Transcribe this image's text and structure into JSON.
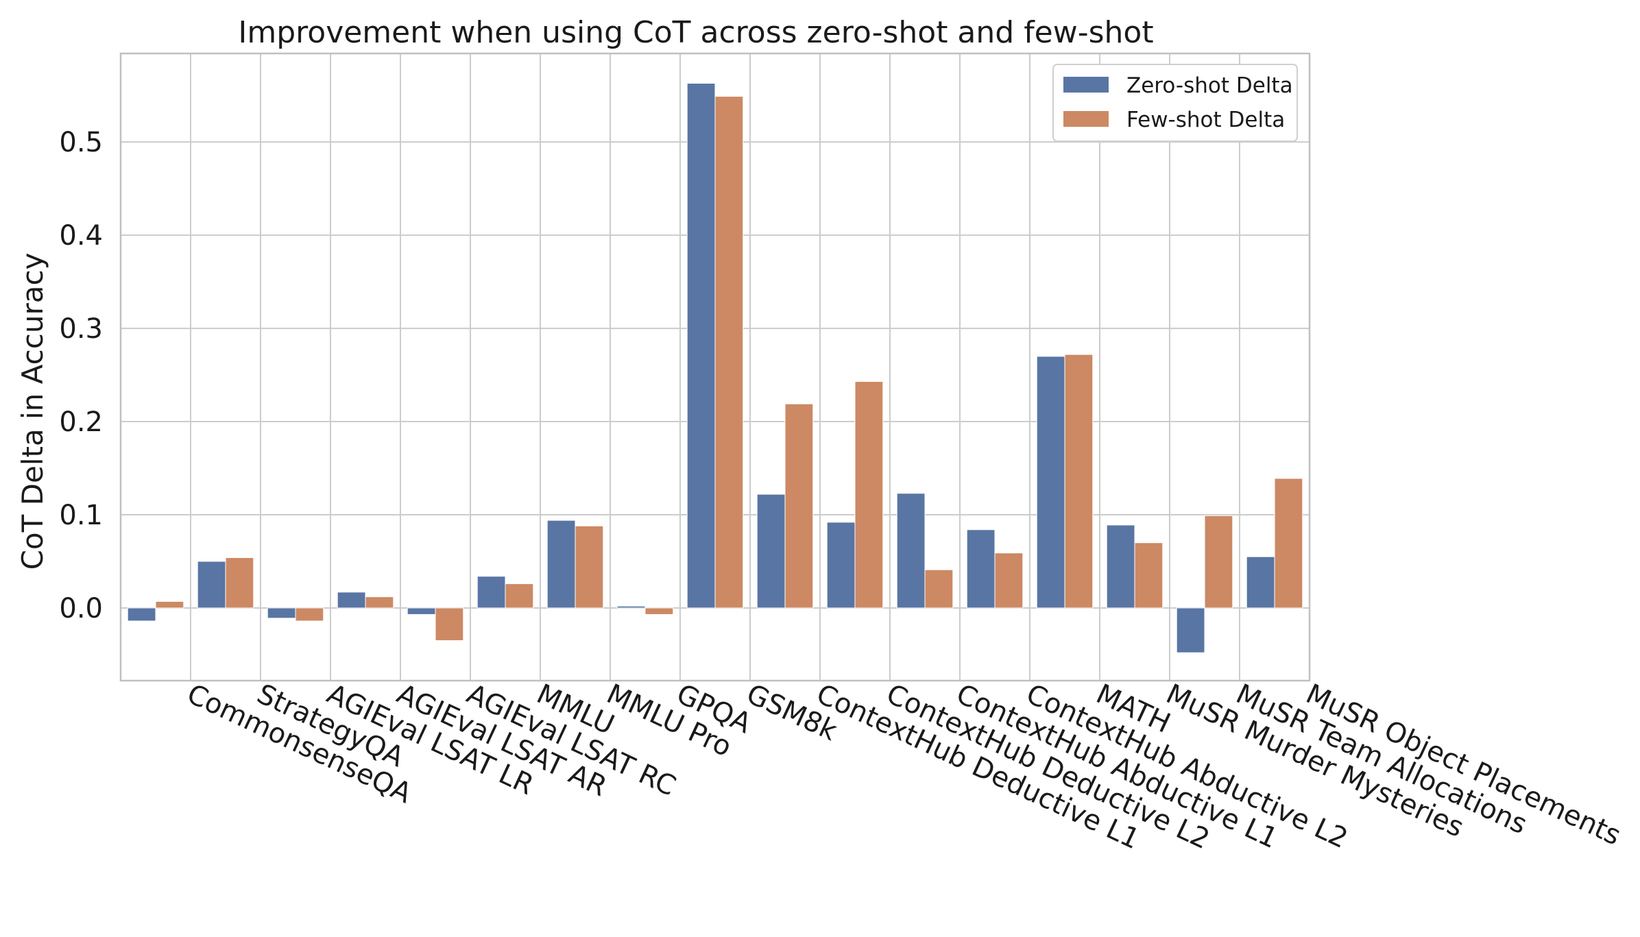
{
  "chart_data": {
    "type": "bar",
    "title": "Improvement when using CoT across zero-shot and few-shot",
    "xlabel": "",
    "ylabel": "CoT Delta in Accuracy",
    "ylim": [
      -0.078,
      0.595
    ],
    "yticks": [
      0.0,
      0.1,
      0.2,
      0.3,
      0.4,
      0.5
    ],
    "ytick_labels": [
      "0.0",
      "0.1",
      "0.2",
      "0.3",
      "0.4",
      "0.5"
    ],
    "grid": true,
    "legend_position": "top-right",
    "categories": [
      "CommonsenseQA",
      "StrategyQA",
      "AGIEval LSAT LR",
      "AGIEval LSAT AR",
      "AGIEval LSAT RC",
      "MMLU",
      "MMLU Pro",
      "GPQA",
      "GSM8k",
      "ContextHub Deductive L1",
      "ContextHub Deductive L2",
      "ContextHub Abductive L1",
      "ContextHub Abductive L2",
      "MATH",
      "MuSR Murder Mysteries",
      "MuSR Team Allocations",
      "MuSR Object Placements"
    ],
    "series": [
      {
        "name": "Zero-shot Delta",
        "color": "#5975a4",
        "values": [
          -0.014,
          0.05,
          -0.011,
          0.017,
          -0.007,
          0.034,
          0.094,
          0.002,
          0.563,
          0.122,
          0.092,
          0.123,
          0.084,
          0.27,
          0.089,
          -0.048,
          0.055
        ]
      },
      {
        "name": "Few-shot Delta",
        "color": "#cc8963",
        "values": [
          0.007,
          0.054,
          -0.014,
          0.012,
          -0.035,
          0.026,
          0.088,
          -0.007,
          0.549,
          0.219,
          0.243,
          0.041,
          0.059,
          0.272,
          0.07,
          0.099,
          0.139
        ]
      }
    ]
  }
}
